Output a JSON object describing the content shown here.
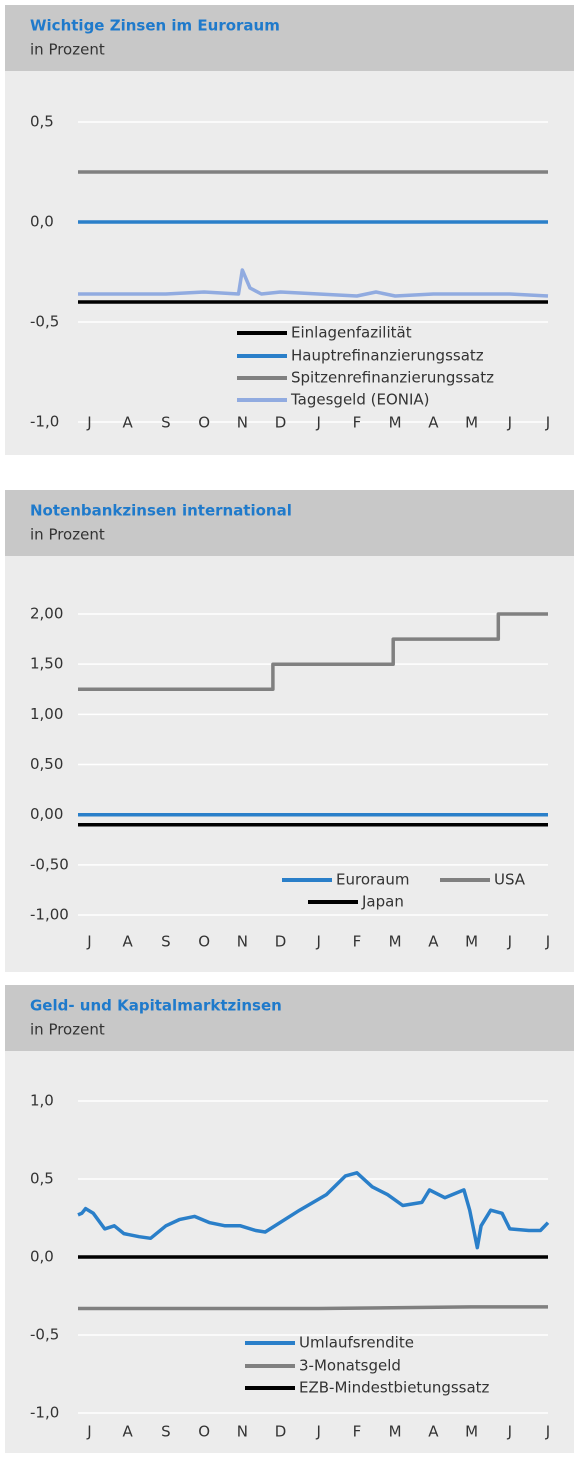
{
  "chart_data": [
    {
      "type": "line",
      "title": "Wichtige Zinsen im Euroraum",
      "subtitle": "in Prozent",
      "xlim": [
        -0.3,
        12
      ],
      "xticks": [
        {
          "value": 0,
          "label": "J"
        },
        {
          "value": 1,
          "label": "A"
        },
        {
          "value": 2,
          "label": "S"
        },
        {
          "value": 3,
          "label": "O"
        },
        {
          "value": 4,
          "label": "N"
        },
        {
          "value": 5,
          "label": "D"
        },
        {
          "value": 6,
          "label": "J"
        },
        {
          "value": 7,
          "label": "F"
        },
        {
          "value": 8,
          "label": "M"
        },
        {
          "value": 9,
          "label": "A"
        },
        {
          "value": 10,
          "label": "M"
        },
        {
          "value": 11,
          "label": "J"
        },
        {
          "value": 12,
          "label": "J"
        }
      ],
      "ylim": [
        -1,
        0.5
      ],
      "yticks": [
        {
          "value": 0.5,
          "label": "0,5"
        },
        {
          "value": 0,
          "label": "0,0"
        },
        {
          "value": -0.5,
          "label": "-0,5"
        },
        {
          "value": -1,
          "label": "-1,0"
        }
      ],
      "grid": true,
      "series": [
        {
          "name": "Einlagenfazilität",
          "color": "#000000",
          "x": [
            -0.3,
            12
          ],
          "values": [
            -0.4,
            -0.4
          ]
        },
        {
          "name": "Hauptrefinanzierungssatz",
          "color": "#2a7fc9",
          "x": [
            -0.3,
            12
          ],
          "values": [
            0,
            0
          ]
        },
        {
          "name": "Spitzenrefinanzierungssatz",
          "color": "#808080",
          "x": [
            -0.3,
            12
          ],
          "values": [
            0.25,
            0.25
          ]
        },
        {
          "name": "Tagesgeld (EONIA)",
          "color": "#91abe0",
          "x": [
            -0.3,
            1,
            2,
            3,
            3.9,
            4.0,
            4.2,
            4.5,
            5,
            6,
            7,
            7.5,
            8,
            9,
            10,
            11,
            12
          ],
          "values": [
            -0.36,
            -0.36,
            -0.36,
            -0.35,
            -0.36,
            -0.24,
            -0.33,
            -0.36,
            -0.35,
            -0.36,
            -0.37,
            -0.35,
            -0.37,
            -0.36,
            -0.36,
            -0.36,
            -0.37
          ]
        }
      ]
    },
    {
      "type": "line",
      "title": "Notenbankzinsen international",
      "subtitle": "in Prozent",
      "xlim": [
        -0.3,
        12
      ],
      "xticks": [
        {
          "value": 0,
          "label": "J"
        },
        {
          "value": 1,
          "label": "A"
        },
        {
          "value": 2,
          "label": "S"
        },
        {
          "value": 3,
          "label": "O"
        },
        {
          "value": 4,
          "label": "N"
        },
        {
          "value": 5,
          "label": "D"
        },
        {
          "value": 6,
          "label": "J"
        },
        {
          "value": 7,
          "label": "F"
        },
        {
          "value": 8,
          "label": "M"
        },
        {
          "value": 9,
          "label": "A"
        },
        {
          "value": 10,
          "label": "M"
        },
        {
          "value": 11,
          "label": "J"
        },
        {
          "value": 12,
          "label": "J"
        }
      ],
      "ylim": [
        -1,
        2
      ],
      "yticks": [
        {
          "value": 2,
          "label": "2,00"
        },
        {
          "value": 1.5,
          "label": "1,50"
        },
        {
          "value": 1,
          "label": "1,00"
        },
        {
          "value": 0.5,
          "label": "0,50"
        },
        {
          "value": 0,
          "label": "0,00"
        },
        {
          "value": -0.5,
          "label": "-0,50"
        },
        {
          "value": -1,
          "label": "-1,00"
        }
      ],
      "grid": true,
      "series": [
        {
          "name": "Euroraum",
          "color": "#2a7fc9",
          "x": [
            -0.3,
            12
          ],
          "values": [
            0,
            0
          ]
        },
        {
          "name": "USA",
          "color": "#808080",
          "x": [
            -0.3,
            4.8,
            4.8,
            7.95,
            7.95,
            10.7,
            10.7,
            12
          ],
          "values": [
            1.25,
            1.25,
            1.5,
            1.5,
            1.75,
            1.75,
            2,
            2
          ]
        },
        {
          "name": "Japan",
          "color": "#000000",
          "x": [
            -0.3,
            12
          ],
          "values": [
            -0.1,
            -0.1
          ]
        }
      ]
    },
    {
      "type": "line",
      "title": "Geld- und Kapitalmarktzinsen",
      "subtitle": "in Prozent",
      "xlim": [
        -0.3,
        12
      ],
      "xticks": [
        {
          "value": 0,
          "label": "J"
        },
        {
          "value": 1,
          "label": "A"
        },
        {
          "value": 2,
          "label": "S"
        },
        {
          "value": 3,
          "label": "O"
        },
        {
          "value": 4,
          "label": "N"
        },
        {
          "value": 5,
          "label": "D"
        },
        {
          "value": 6,
          "label": "J"
        },
        {
          "value": 7,
          "label": "F"
        },
        {
          "value": 8,
          "label": "M"
        },
        {
          "value": 9,
          "label": "A"
        },
        {
          "value": 10,
          "label": "M"
        },
        {
          "value": 11,
          "label": "J"
        },
        {
          "value": 12,
          "label": "J"
        }
      ],
      "ylim": [
        -1,
        1
      ],
      "yticks": [
        {
          "value": 1,
          "label": "1,0"
        },
        {
          "value": 0.5,
          "label": "0,5"
        },
        {
          "value": 0,
          "label": "0,0"
        },
        {
          "value": -0.5,
          "label": "-0,5"
        },
        {
          "value": -1,
          "label": "-1,0"
        }
      ],
      "grid": true,
      "series": [
        {
          "name": "Umlaufsrendite",
          "color": "#2a7fc9",
          "x": [
            -0.3,
            -0.2,
            -0.1,
            0.1,
            0.4,
            0.65,
            0.9,
            1.3,
            1.6,
            2.0,
            2.35,
            2.75,
            3.15,
            3.55,
            3.95,
            4.35,
            4.6,
            5.5,
            6.2,
            6.7,
            7.0,
            7.4,
            7.8,
            8.2,
            8.7,
            8.9,
            9.3,
            9.8,
            9.95,
            10.15,
            10.25,
            10.5,
            10.8,
            11,
            11.5,
            11.8,
            12
          ],
          "values": [
            0.27,
            0.28,
            0.31,
            0.28,
            0.18,
            0.2,
            0.15,
            0.13,
            0.12,
            0.2,
            0.24,
            0.26,
            0.22,
            0.2,
            0.2,
            0.17,
            0.16,
            0.3,
            0.4,
            0.52,
            0.54,
            0.45,
            0.4,
            0.33,
            0.35,
            0.43,
            0.38,
            0.43,
            0.3,
            0.06,
            0.2,
            0.3,
            0.28,
            0.18,
            0.17,
            0.17,
            0.22
          ]
        },
        {
          "name": "3-Monatsgeld",
          "color": "#808080",
          "x": [
            -0.3,
            6,
            10,
            12
          ],
          "values": [
            -0.33,
            -0.33,
            -0.32,
            -0.32
          ]
        },
        {
          "name": "EZB-Mindestbietungssatz",
          "color": "#000000",
          "x": [
            -0.3,
            12
          ],
          "values": [
            0,
            0
          ]
        }
      ]
    }
  ]
}
